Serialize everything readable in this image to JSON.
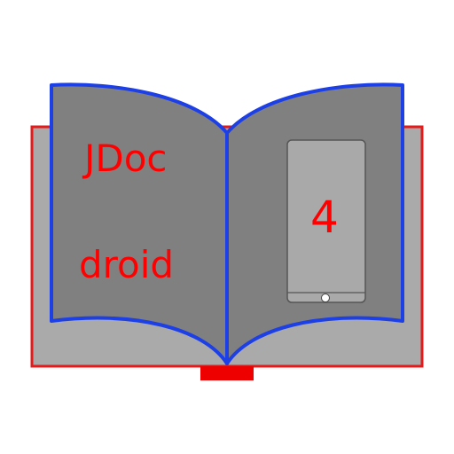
{
  "app_icon": {
    "title_line_1": "JDoc",
    "title_line_2": "droid",
    "version_number": "4",
    "icon_name": "open-book-icon",
    "colors": {
      "cover": "#e41b1b",
      "cover_inner": "#aaaaaa",
      "pages": "#808080",
      "page_outline": "#1d3fe6",
      "phone_body": "#a9a9a9",
      "phone_outline": "#555555",
      "text": "#ff0000",
      "bookmark": "#ee0000"
    }
  }
}
